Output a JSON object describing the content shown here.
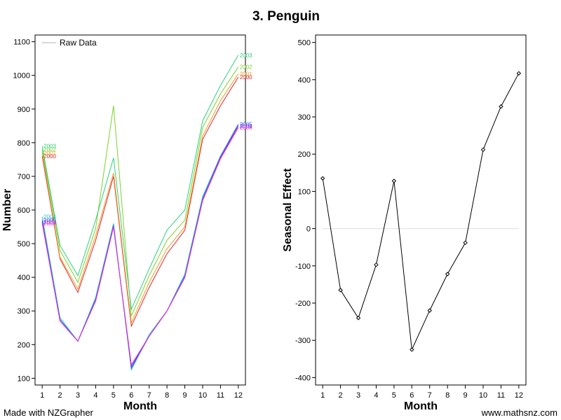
{
  "title": "3. Penguin",
  "footer": {
    "left": "Made with NZGrapher",
    "right": "www.mathsnz.com"
  },
  "chart_data": [
    {
      "type": "line",
      "xlabel": "Month",
      "ylabel": "Number",
      "xlim": [
        0.6,
        12.4
      ],
      "ylim": [
        80,
        1120
      ],
      "x_ticks": [
        1,
        2,
        3,
        4,
        5,
        6,
        7,
        8,
        9,
        10,
        11,
        12
      ],
      "y_ticks": [
        100,
        200,
        300,
        400,
        500,
        600,
        700,
        800,
        900,
        1000,
        1100
      ],
      "legend": {
        "label": "Raw Data",
        "placement": "top-left",
        "color": "#cccccc"
      },
      "x": [
        1,
        2,
        3,
        4,
        5,
        6,
        7,
        8,
        9,
        10,
        11,
        12
      ],
      "series": [
        {
          "name": "2000",
          "color": "#e8222a",
          "values": [
            760,
            455,
            355,
            510,
            700,
            255,
            370,
            470,
            540,
            810,
            910,
            995
          ]
        },
        {
          "name": "2001",
          "color": "#e8a12a",
          "values": [
            770,
            460,
            365,
            525,
            710,
            265,
            385,
            485,
            550,
            820,
            925,
            1005
          ]
        },
        {
          "name": "2002",
          "color": "#7dd22a",
          "values": [
            780,
            480,
            385,
            545,
            910,
            285,
            405,
            510,
            570,
            845,
            945,
            1025
          ]
        },
        {
          "name": "2003",
          "color": "#2ad27d",
          "values": [
            790,
            495,
            405,
            570,
            755,
            305,
            425,
            540,
            600,
            865,
            970,
            1060
          ]
        },
        {
          "name": "2004",
          "color": "#2ac8d2",
          "values": [
            580,
            280,
            210,
            340,
            560,
            125,
            230,
            300,
            410,
            640,
            760,
            850
          ]
        },
        {
          "name": "2005",
          "color": "#2a6ee8",
          "values": [
            570,
            275,
            210,
            335,
            555,
            130,
            225,
            300,
            405,
            635,
            760,
            855
          ]
        },
        {
          "name": "2006",
          "color": "#7d2ae8",
          "values": [
            565,
            270,
            210,
            330,
            550,
            135,
            225,
            300,
            400,
            630,
            755,
            850
          ]
        },
        {
          "name": "2008",
          "color": "#e82ad2",
          "values": [
            560,
            270,
            210,
            330,
            550,
            140,
            225,
            300,
            400,
            628,
            752,
            845
          ]
        }
      ]
    },
    {
      "type": "line",
      "xlabel": "Month",
      "ylabel": "Seasonal Effect",
      "xlim": [
        0.6,
        12.4
      ],
      "ylim": [
        -420,
        520
      ],
      "x_ticks": [
        1,
        2,
        3,
        4,
        5,
        6,
        7,
        8,
        9,
        10,
        11,
        12
      ],
      "y_ticks": [
        -400,
        -300,
        -200,
        -100,
        0,
        100,
        200,
        300,
        400,
        500
      ],
      "zero_line": true,
      "x": [
        1,
        2,
        3,
        4,
        5,
        6,
        7,
        8,
        9,
        10,
        11,
        12
      ],
      "series": [
        {
          "color": "#000000",
          "values": [
            135,
            -165,
            -240,
            -97,
            128,
            -325,
            -220,
            -122,
            -38,
            212,
            328,
            417
          ]
        }
      ]
    }
  ]
}
